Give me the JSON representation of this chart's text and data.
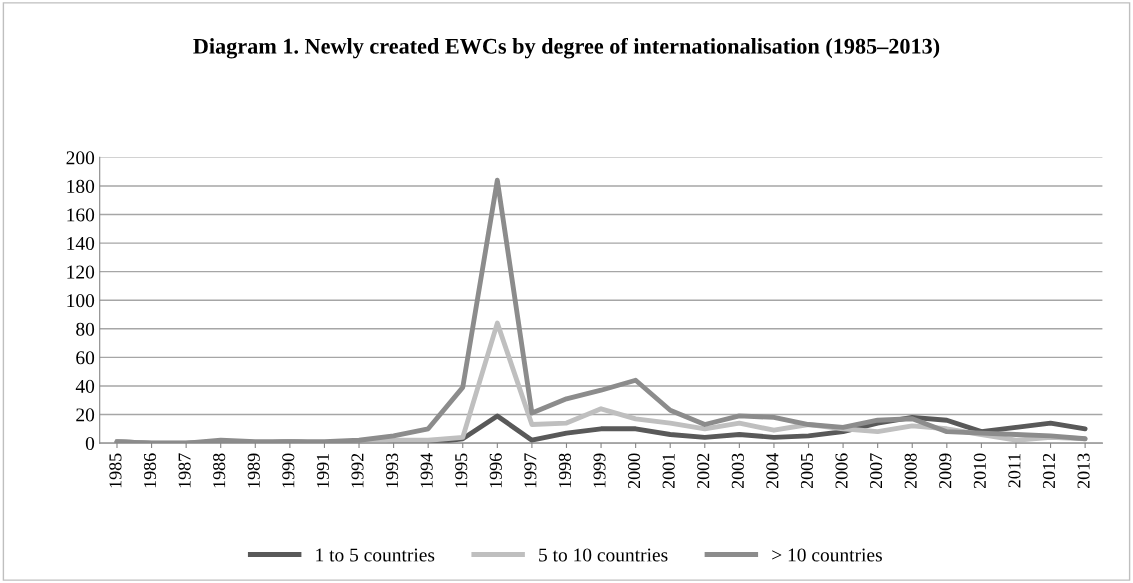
{
  "chart_data": {
    "type": "line",
    "title": "Diagram 1. Newly created EWCs by degree of internationalisation (1985–2013)",
    "categories": [
      "1985",
      "1986",
      "1987",
      "1988",
      "1989",
      "1990",
      "1991",
      "1992",
      "1993",
      "1994",
      "1995",
      "1996",
      "1997",
      "1998",
      "1999",
      "2000",
      "2001",
      "2002",
      "2003",
      "2004",
      "2005",
      "2006",
      "2007",
      "2008",
      "2009",
      "2010",
      "2011",
      "2012",
      "2013"
    ],
    "series": [
      {
        "name": "1 to 5 countries",
        "color": "#595959",
        "values": [
          1,
          0,
          0,
          1,
          0,
          1,
          0,
          0,
          0,
          0,
          3,
          19,
          2,
          7,
          10,
          10,
          6,
          4,
          6,
          4,
          5,
          8,
          14,
          18,
          16,
          8,
          11,
          14,
          10
        ]
      },
      {
        "name": "5 to 10 countries",
        "color": "#bfbfbf",
        "values": [
          1,
          0,
          0,
          1,
          0,
          1,
          0,
          1,
          2,
          2,
          4,
          84,
          13,
          14,
          24,
          17,
          14,
          10,
          14,
          9,
          13,
          10,
          8,
          12,
          10,
          6,
          2,
          4,
          3
        ]
      },
      {
        "name": "> 10 countries",
        "color": "#8c8c8c",
        "values": [
          1,
          0,
          0,
          2,
          1,
          1,
          1,
          2,
          5,
          10,
          39,
          184,
          21,
          31,
          37,
          44,
          23,
          13,
          19,
          18,
          13,
          11,
          16,
          17,
          8,
          7,
          6,
          5,
          3
        ]
      }
    ],
    "ylim": [
      0,
      200
    ],
    "yticks": [
      0,
      20,
      40,
      60,
      80,
      100,
      120,
      140,
      160,
      180,
      200
    ],
    "grid": "y",
    "legend": "bottom",
    "marker": "none",
    "line_style": "solid"
  }
}
